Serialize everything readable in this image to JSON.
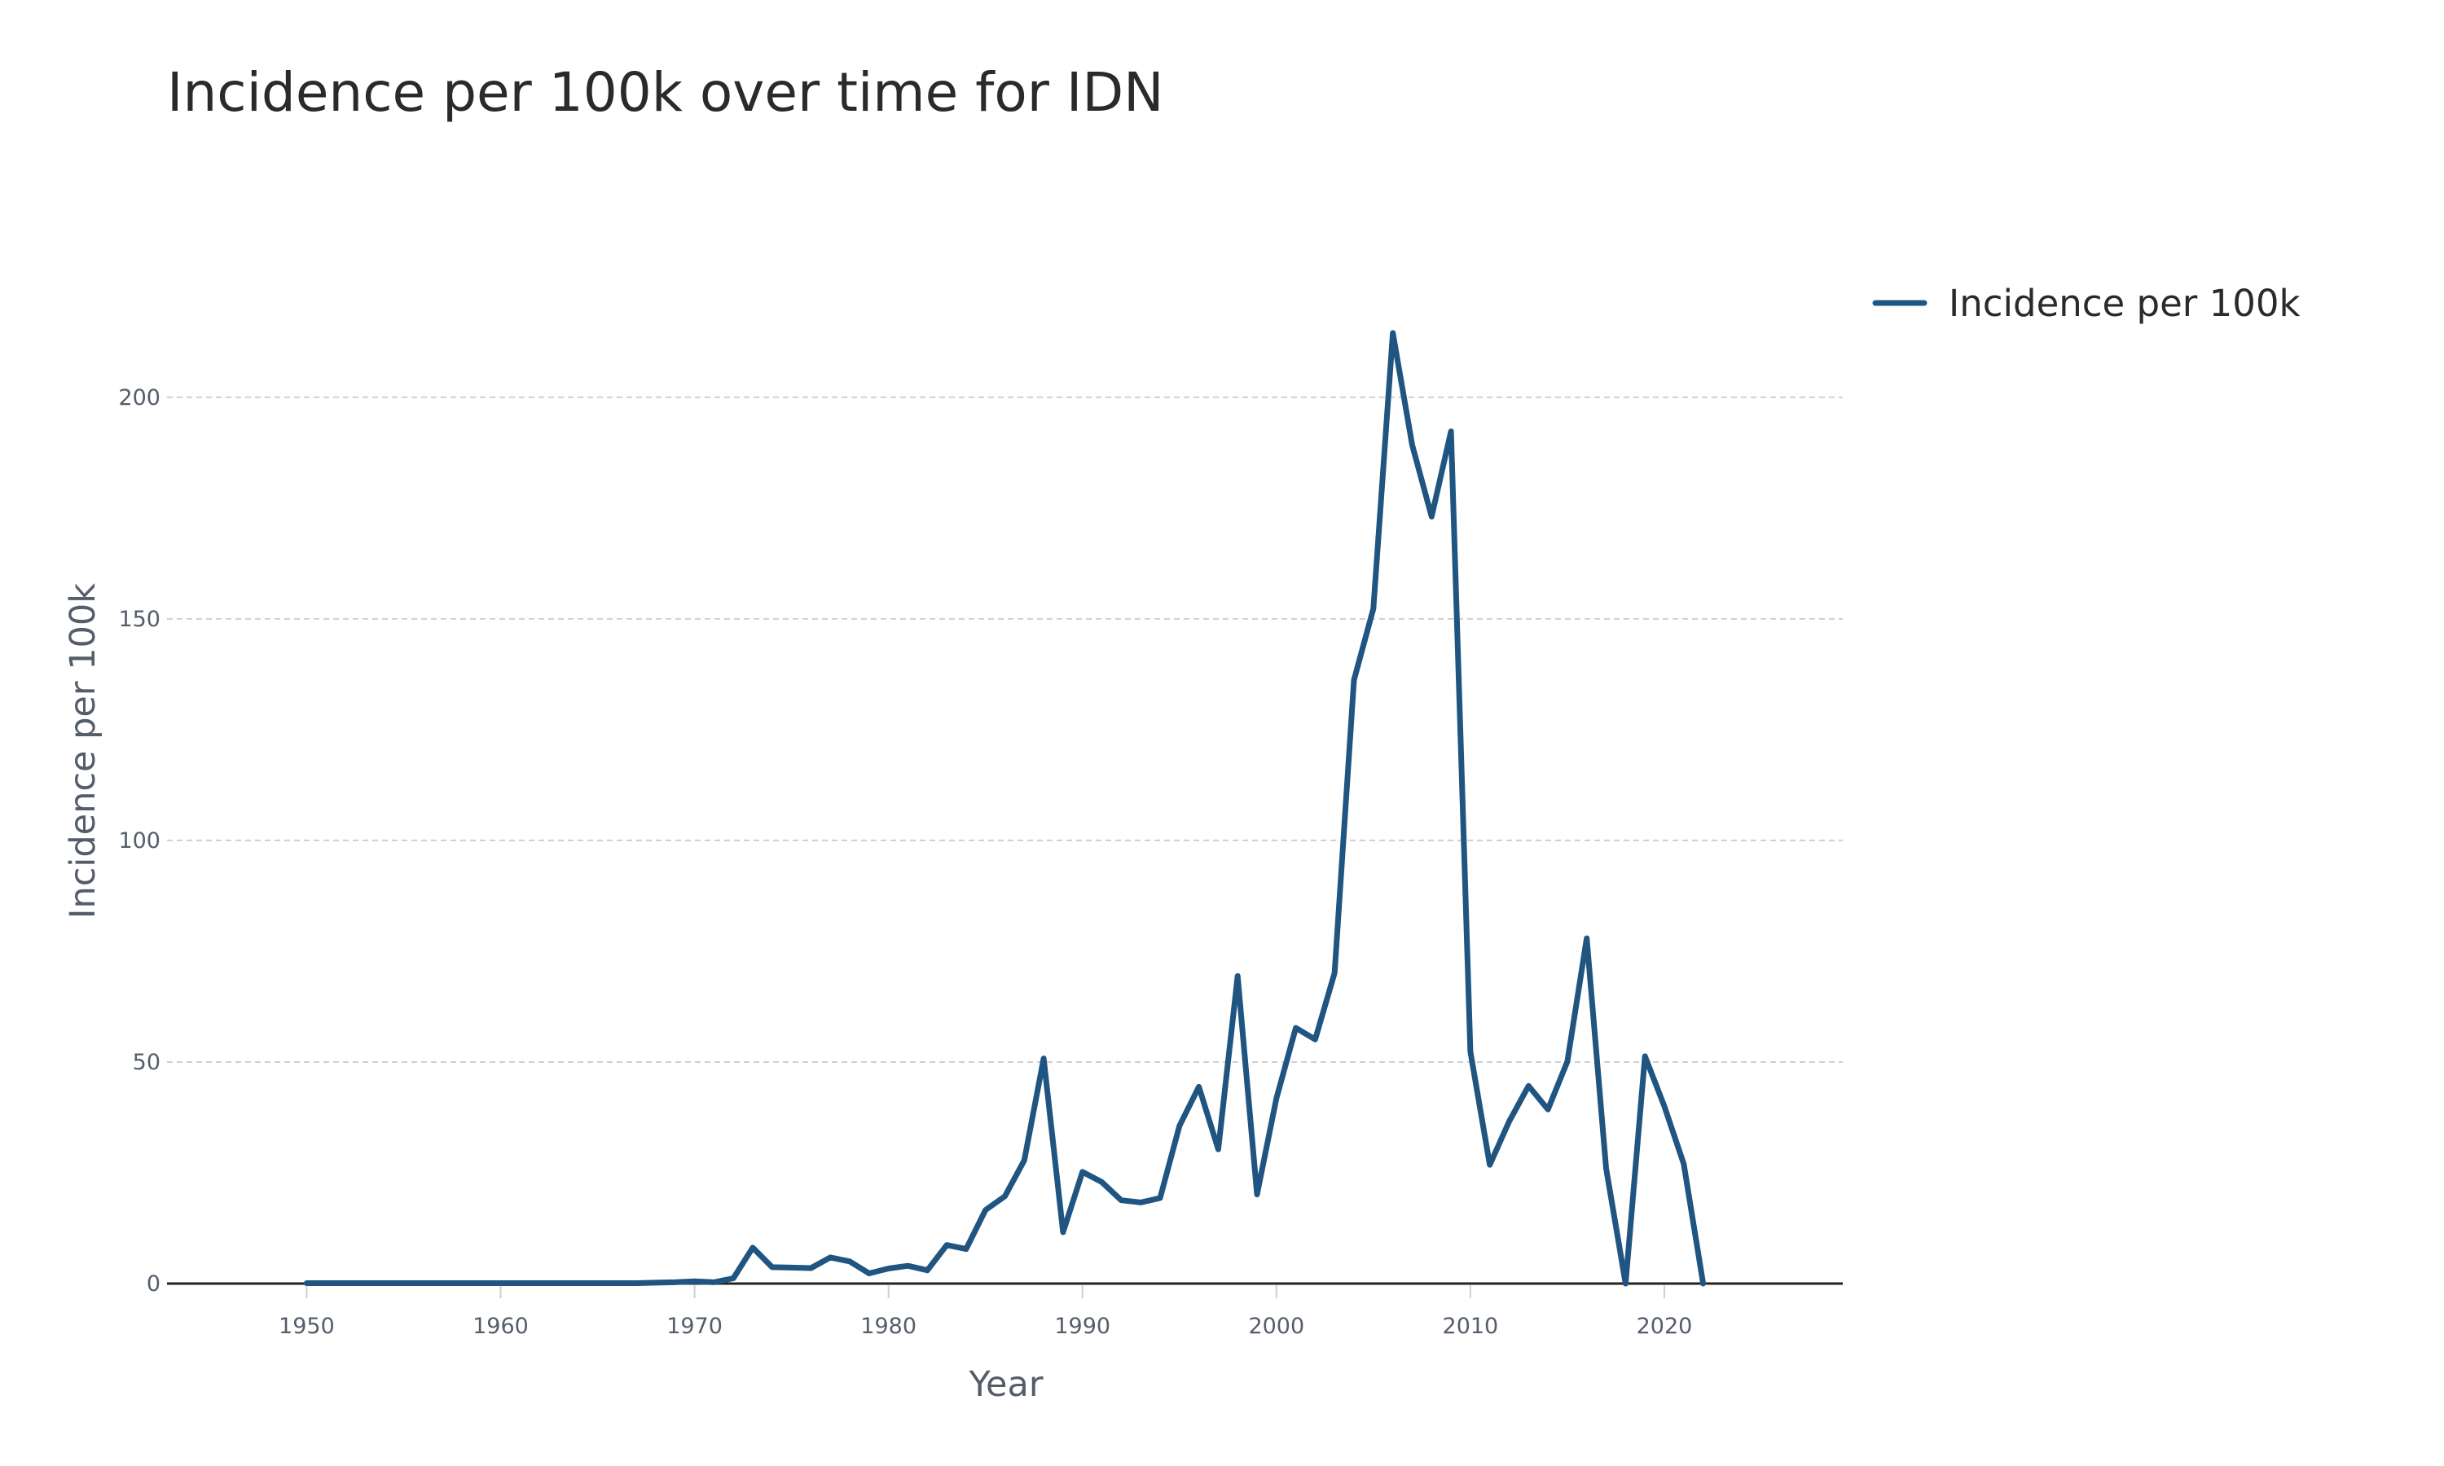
{
  "chart_data": {
    "type": "line",
    "title": "Incidence per 100k over time for IDN",
    "xlabel": "Year",
    "ylabel": "Incidence per 100k",
    "xlim": [
      1942.8,
      2029.2
    ],
    "ylim": [
      0,
      229
    ],
    "x_ticks": [
      1950,
      1960,
      1970,
      1980,
      1990,
      2000,
      2010,
      2020
    ],
    "y_ticks": [
      0,
      50,
      100,
      150,
      200
    ],
    "grid": "horizontal",
    "legend_position": "top-right",
    "colors": {
      "series": "#1f5580"
    },
    "series": [
      {
        "name": "Incidence per 100k",
        "x": [
          1950,
          1951,
          1952,
          1953,
          1954,
          1955,
          1956,
          1957,
          1958,
          1959,
          1960,
          1961,
          1962,
          1963,
          1964,
          1965,
          1966,
          1967,
          1968,
          1969,
          1970,
          1971,
          1972,
          1973,
          1974,
          1975,
          1976,
          1977,
          1978,
          1979,
          1980,
          1981,
          1982,
          1983,
          1984,
          1985,
          1986,
          1987,
          1988,
          1989,
          1990,
          1991,
          1992,
          1993,
          1994,
          1995,
          1996,
          1997,
          1998,
          1999,
          2000,
          2001,
          2002,
          2003,
          2004,
          2005,
          2006,
          2007,
          2008,
          2009,
          2010,
          2011,
          2012,
          2013,
          2014,
          2015,
          2016,
          2017,
          2018,
          2019,
          2020,
          2021,
          2022
        ],
        "values": [
          0.1,
          0.1,
          0.1,
          0.1,
          0.1,
          0.1,
          0.1,
          0.1,
          0.1,
          0.1,
          0.1,
          0.1,
          0.1,
          0.1,
          0.1,
          0.1,
          0.1,
          0.1,
          0.2,
          0.3,
          0.5,
          0.3,
          1.2,
          8.1,
          3.7,
          3.6,
          3.5,
          5.9,
          5.0,
          2.3,
          3.4,
          4.0,
          3.0,
          8.7,
          7.8,
          16.6,
          19.7,
          27.8,
          50.8,
          11.6,
          25.2,
          22.9,
          18.8,
          18.3,
          19.3,
          35.6,
          44.4,
          30.3,
          69.4,
          20.1,
          41.8,
          57.7,
          55.1,
          70.1,
          136.2,
          152.3,
          214.5,
          189.2,
          173.1,
          192.3,
          52.3,
          26.8,
          36.6,
          44.6,
          39.3,
          50.1,
          77.9,
          26.0,
          0.0,
          51.3,
          40.0,
          27.0,
          0.0
        ]
      }
    ]
  }
}
